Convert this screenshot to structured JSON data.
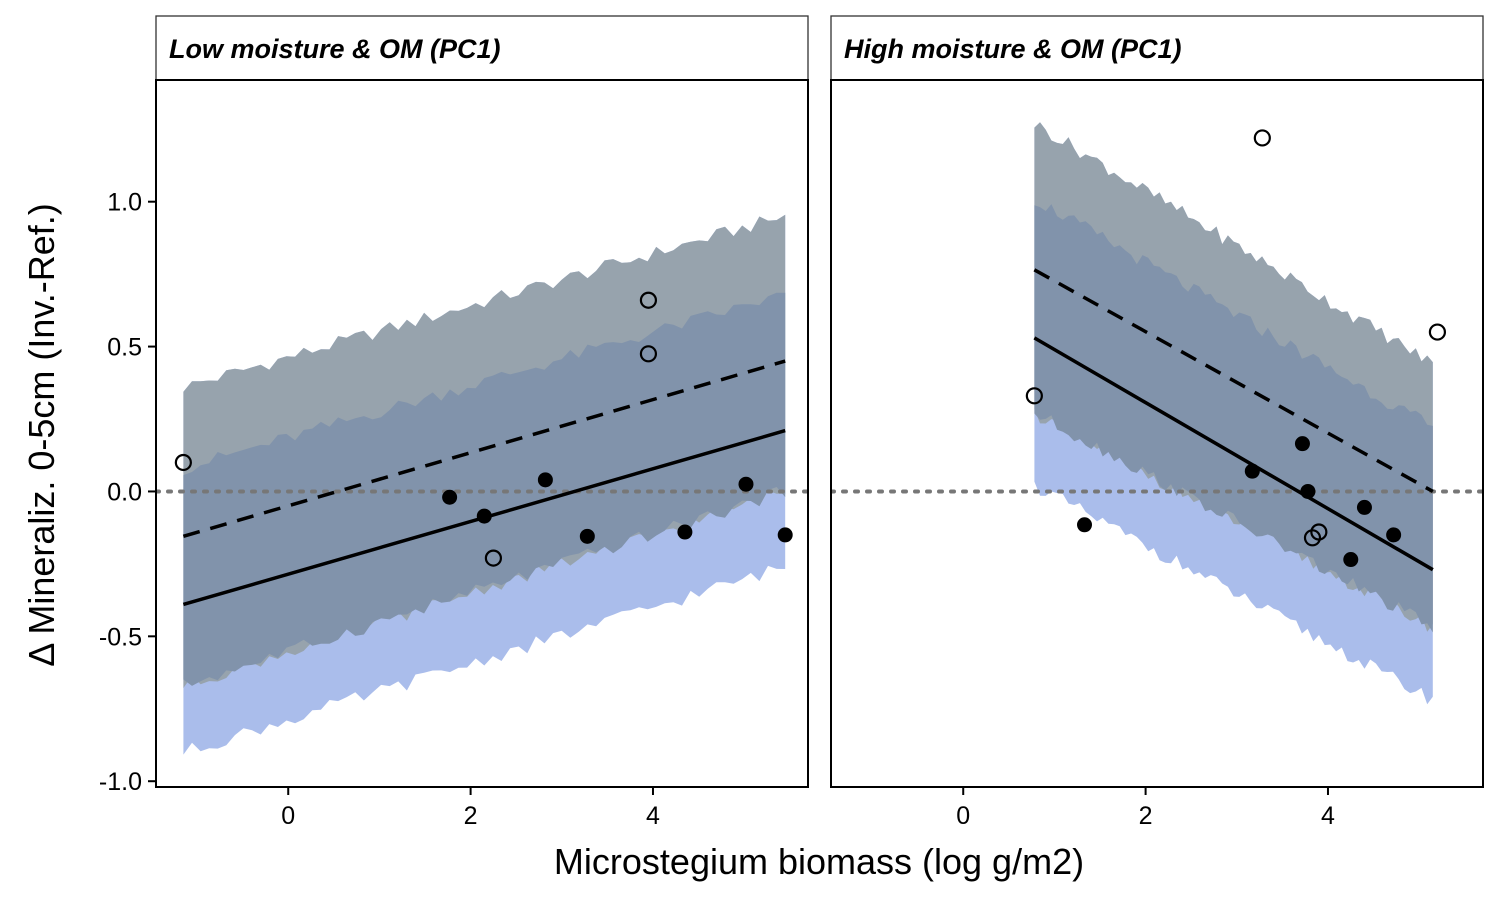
{
  "chart_data": {
    "type": "scatter",
    "xlabel": "Microstegium biomass (log g/m2)",
    "ylabel": "Δ Mineraliz. 0-5cm (Inv.-Ref.)",
    "xlim": [
      -1.45,
      5.7
    ],
    "ylim": [
      -1.02,
      1.42
    ],
    "x_ticks": [
      0,
      2,
      4
    ],
    "x_tick_labels": [
      "0",
      "2",
      "4"
    ],
    "y_ticks": [
      -1.0,
      -0.5,
      0.0,
      0.5,
      1.0
    ],
    "y_tick_labels": [
      "-1.0",
      "-0.5",
      "0.0",
      "0.5",
      "1.0"
    ],
    "reference_line_y": 0.0,
    "band_colors": {
      "outer": "#aabdeb",
      "middle": "#8193ab",
      "inner": "#97a3ad"
    },
    "panels": [
      {
        "title": "Low moisture & OM (PC1)",
        "x_range": [
          -1.15,
          5.45
        ],
        "dashed_line": [
          [
            -1.15,
            -0.155
          ],
          [
            5.45,
            0.45
          ]
        ],
        "solid_line": [
          [
            -1.15,
            -0.39
          ],
          [
            5.45,
            0.21
          ]
        ],
        "band_low": [
          [
            -1.15,
            -0.9
          ],
          [
            5.45,
            -0.26
          ]
        ],
        "band_mid_low": [
          [
            -1.15,
            -0.67
          ],
          [
            5.45,
            0.0
          ]
        ],
        "band_mid_high": [
          [
            -1.15,
            0.08
          ],
          [
            5.45,
            0.68
          ]
        ],
        "band_high": [
          [
            -1.15,
            0.36
          ],
          [
            5.45,
            0.95
          ]
        ],
        "points_filled": [
          [
            1.77,
            -0.02
          ],
          [
            2.15,
            -0.085
          ],
          [
            2.82,
            0.04
          ],
          [
            3.28,
            -0.155
          ],
          [
            4.35,
            -0.14
          ],
          [
            5.02,
            0.025
          ],
          [
            5.45,
            -0.15
          ]
        ],
        "points_open": [
          [
            -1.15,
            0.1
          ],
          [
            2.25,
            -0.23
          ],
          [
            3.95,
            0.66
          ],
          [
            3.95,
            0.475
          ]
        ]
      },
      {
        "title": "High moisture & OM (PC1)",
        "x_range": [
          0.78,
          5.15
        ],
        "dashed_line": [
          [
            0.78,
            0.765
          ],
          [
            5.15,
            0.0
          ]
        ],
        "solid_line": [
          [
            0.78,
            0.53
          ],
          [
            5.15,
            -0.27
          ]
        ],
        "band_low": [
          [
            0.78,
            0.02
          ],
          [
            5.15,
            -0.72
          ]
        ],
        "band_mid_low": [
          [
            0.78,
            0.27
          ],
          [
            5.15,
            -0.47
          ]
        ],
        "band_mid_high": [
          [
            0.78,
            1.01
          ],
          [
            5.15,
            0.22
          ]
        ],
        "band_high": [
          [
            0.78,
            1.27
          ],
          [
            5.15,
            0.44
          ]
        ],
        "points_filled": [
          [
            1.33,
            -0.115
          ],
          [
            3.17,
            0.07
          ],
          [
            3.72,
            0.165
          ],
          [
            3.78,
            0.0
          ],
          [
            4.25,
            -0.235
          ],
          [
            4.4,
            -0.055
          ],
          [
            4.72,
            -0.15
          ]
        ],
        "points_open": [
          [
            0.78,
            0.33
          ],
          [
            3.28,
            1.22
          ],
          [
            3.83,
            -0.16
          ],
          [
            3.9,
            -0.14
          ],
          [
            5.2,
            0.55
          ]
        ]
      }
    ]
  }
}
